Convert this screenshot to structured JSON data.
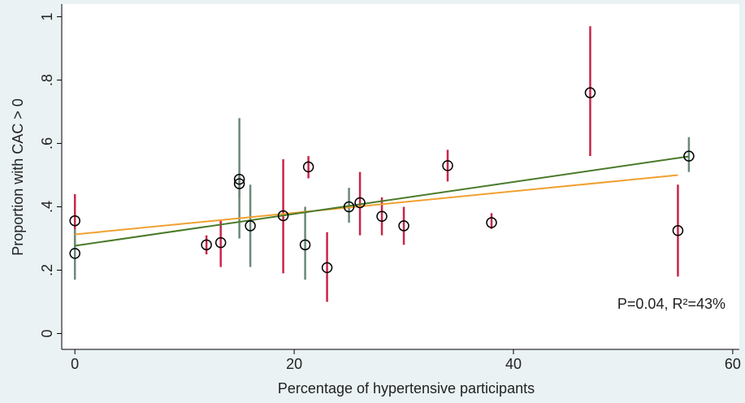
{
  "chart_data": {
    "type": "scatter",
    "xlabel": "Percentage of hypertensive participants",
    "ylabel": "Proportion with CAC > 0",
    "annotation": "P=0.04, R²=43%",
    "xlim": [
      -1.2,
      60.6
    ],
    "ylim": [
      -0.05,
      1.04
    ],
    "xticks": [
      0,
      20,
      40,
      60
    ],
    "yticks": [
      0,
      {
        "value": 0.2,
        "label": ".2"
      },
      {
        "value": 0.4,
        "label": ".4"
      },
      {
        "value": 0.6,
        "label": ".6"
      },
      {
        "value": 0.8,
        "label": ".8"
      },
      1
    ],
    "series": [
      {
        "color": "#c8264a",
        "x": [
          0,
          12,
          13.3,
          15,
          19,
          21.3,
          23,
          26,
          28,
          30,
          34,
          38,
          47,
          55
        ],
        "values": [
          0.356,
          0.28,
          0.287,
          0.487,
          0.372,
          0.526,
          0.208,
          0.413,
          0.37,
          0.34,
          0.53,
          0.35,
          0.76,
          0.325
        ],
        "low": [
          0.28,
          0.25,
          0.21,
          0.43,
          0.19,
          0.49,
          0.1,
          0.31,
          0.31,
          0.28,
          0.48,
          0.33,
          0.56,
          0.18
        ],
        "high": [
          0.44,
          0.31,
          0.36,
          0.5,
          0.55,
          0.56,
          0.32,
          0.51,
          0.43,
          0.4,
          0.58,
          0.38,
          0.97,
          0.47
        ],
        "fit": {
          "color": "#f0a030",
          "x": [
            0,
            55
          ],
          "values": [
            0.313,
            0.5
          ]
        }
      },
      {
        "color": "#6a8a78",
        "x": [
          0,
          15,
          16,
          21,
          25,
          56
        ],
        "values": [
          0.253,
          0.473,
          0.34,
          0.28,
          0.4,
          0.56
        ],
        "low": [
          0.17,
          0.3,
          0.21,
          0.17,
          0.35,
          0.51
        ],
        "high": [
          0.33,
          0.68,
          0.47,
          0.4,
          0.46,
          0.62
        ],
        "fit": {
          "color": "#4a7a2a",
          "x": [
            0,
            56
          ],
          "values": [
            0.277,
            0.559
          ]
        }
      }
    ]
  }
}
